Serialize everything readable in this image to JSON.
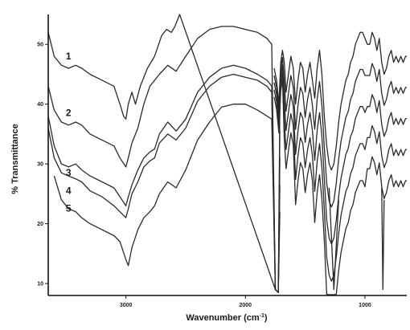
{
  "chart_data": {
    "type": "line",
    "xlabel_prefix": "Wavenumber (cm",
    "xlabel_sup": "-1",
    "xlabel_suffix": ")",
    "ylabel": "% Transmittance",
    "xlim": [
      3650,
      650
    ],
    "ylim": [
      8,
      55
    ],
    "x_reversed": true,
    "grid": false,
    "legend": "none (curves labeled inline 1-5)",
    "x_ticks": [
      {
        "value": 3000,
        "label": "3000"
      },
      {
        "value": 2000,
        "label": "2000"
      },
      {
        "value": 1000,
        "label": "1000"
      }
    ],
    "y_ticks": [
      {
        "value": 10,
        "label": "10"
      },
      {
        "value": 20,
        "label": "20"
      },
      {
        "value": 30,
        "label": "30"
      },
      {
        "value": 40,
        "label": "40"
      },
      {
        "value": 50,
        "label": "50"
      }
    ],
    "series": [
      {
        "name": "1",
        "label_at": [
          3480,
          47.5
        ],
        "color": "#2a2a2a",
        "points": [
          [
            3650,
            52
          ],
          [
            3600,
            48
          ],
          [
            3540,
            46.5
          ],
          [
            3480,
            46
          ],
          [
            3420,
            46.5
          ],
          [
            3370,
            46
          ],
          [
            3300,
            45
          ],
          [
            3200,
            44
          ],
          [
            3100,
            43
          ],
          [
            3050,
            40
          ],
          [
            3020,
            38
          ],
          [
            3000,
            37.5
          ],
          [
            2980,
            40
          ],
          [
            2950,
            42
          ],
          [
            2920,
            40
          ],
          [
            2880,
            43
          ],
          [
            2820,
            46
          ],
          [
            2760,
            48
          ],
          [
            2700,
            51.5
          ],
          [
            2660,
            52.5
          ],
          [
            2620,
            52
          ],
          [
            2590,
            53
          ],
          [
            2550,
            55
          ]
        ]
      },
      {
        "name": "2",
        "label_at": [
          3480,
          38
        ],
        "color": "#2a2a2a",
        "points": [
          [
            3650,
            43
          ],
          [
            3600,
            39
          ],
          [
            3540,
            37
          ],
          [
            3480,
            36.5
          ],
          [
            3420,
            37
          ],
          [
            3370,
            36.5
          ],
          [
            3300,
            35
          ],
          [
            3200,
            34
          ],
          [
            3100,
            33
          ],
          [
            3050,
            31
          ],
          [
            3000,
            29.5
          ],
          [
            2980,
            31
          ],
          [
            2950,
            33.5
          ],
          [
            2900,
            36
          ],
          [
            2850,
            40
          ],
          [
            2800,
            43
          ],
          [
            2720,
            45
          ],
          [
            2650,
            46.5
          ],
          [
            2580,
            45.5
          ],
          [
            2500,
            48
          ],
          [
            2400,
            51
          ],
          [
            2300,
            52.5
          ],
          [
            2200,
            53
          ],
          [
            2100,
            53
          ],
          [
            2000,
            52.5
          ],
          [
            1900,
            52
          ],
          [
            1820,
            51
          ],
          [
            1780,
            50
          ]
        ]
      },
      {
        "name": "3",
        "label_at": [
          3480,
          28
        ],
        "color": "#2a2a2a",
        "points": [
          [
            3650,
            38
          ],
          [
            3600,
            33
          ],
          [
            3540,
            30
          ],
          [
            3480,
            29.5
          ],
          [
            3420,
            30
          ],
          [
            3370,
            29
          ],
          [
            3300,
            28
          ],
          [
            3200,
            27
          ],
          [
            3100,
            26
          ],
          [
            3050,
            24.5
          ],
          [
            3000,
            23
          ],
          [
            2980,
            24.5
          ],
          [
            2950,
            26.5
          ],
          [
            2900,
            29
          ],
          [
            2850,
            31
          ],
          [
            2800,
            32
          ],
          [
            2760,
            32.5
          ],
          [
            2720,
            35
          ],
          [
            2650,
            37
          ],
          [
            2580,
            35.5
          ],
          [
            2500,
            37.5
          ],
          [
            2400,
            42
          ],
          [
            2300,
            44.5
          ],
          [
            2200,
            46
          ],
          [
            2100,
            46.5
          ],
          [
            2000,
            46
          ],
          [
            1900,
            45
          ],
          [
            1820,
            44
          ],
          [
            1780,
            43
          ]
        ]
      },
      {
        "name": "4",
        "label_at": [
          3480,
          25
        ],
        "color": "#2a2a2a",
        "points": [
          [
            3650,
            36
          ],
          [
            3600,
            31
          ],
          [
            3540,
            28.5
          ],
          [
            3480,
            28
          ],
          [
            3420,
            27.5
          ],
          [
            3370,
            27
          ],
          [
            3300,
            25.5
          ],
          [
            3200,
            24.5
          ],
          [
            3100,
            23
          ],
          [
            3050,
            22
          ],
          [
            3000,
            21
          ],
          [
            2980,
            22.5
          ],
          [
            2950,
            25
          ],
          [
            2900,
            27
          ],
          [
            2850,
            29.5
          ],
          [
            2800,
            30.5
          ],
          [
            2760,
            31
          ],
          [
            2720,
            33.5
          ],
          [
            2650,
            35
          ],
          [
            2580,
            34
          ],
          [
            2500,
            36
          ],
          [
            2400,
            40.5
          ],
          [
            2300,
            43
          ],
          [
            2200,
            44.5
          ],
          [
            2100,
            45
          ],
          [
            2000,
            44.5
          ],
          [
            1900,
            44
          ],
          [
            1820,
            43
          ],
          [
            1780,
            42
          ]
        ]
      },
      {
        "name": "5",
        "label_at": [
          3480,
          22
        ],
        "color": "#2a2a2a",
        "points": [
          [
            3600,
            28
          ],
          [
            3540,
            24
          ],
          [
            3480,
            22.5
          ],
          [
            3420,
            22
          ],
          [
            3370,
            21
          ],
          [
            3300,
            20
          ],
          [
            3200,
            19
          ],
          [
            3100,
            18
          ],
          [
            3050,
            17
          ],
          [
            3000,
            14
          ],
          [
            2980,
            13
          ],
          [
            2950,
            16
          ],
          [
            2900,
            19
          ],
          [
            2850,
            21
          ],
          [
            2800,
            22
          ],
          [
            2760,
            23
          ],
          [
            2720,
            25
          ],
          [
            2650,
            27
          ],
          [
            2580,
            26
          ],
          [
            2500,
            29
          ],
          [
            2400,
            34
          ],
          [
            2300,
            37
          ],
          [
            2200,
            39.5
          ],
          [
            2100,
            40
          ],
          [
            2000,
            40
          ],
          [
            1900,
            39
          ],
          [
            1820,
            38
          ],
          [
            1780,
            37.5
          ]
        ]
      }
    ],
    "fingerprint_region": {
      "x": [
        1760,
        1740,
        1720,
        1705,
        1690,
        1675,
        1660,
        1640,
        1620,
        1600,
        1580,
        1560,
        1540,
        1520,
        1500,
        1480,
        1460,
        1440,
        1420,
        1400,
        1380,
        1360,
        1340,
        1320,
        1300,
        1280,
        1260,
        1240,
        1220,
        1200,
        1180,
        1160,
        1140,
        1120,
        1100,
        1080,
        1060,
        1040,
        1020,
        1000,
        980,
        960,
        940,
        920,
        900,
        880,
        860,
        840,
        820,
        800,
        780,
        760,
        740,
        720,
        700,
        680,
        660,
        650
      ],
      "y1": [
        46,
        44,
        40,
        47,
        49,
        47,
        42,
        45,
        48,
        46,
        40,
        44,
        47,
        46,
        42,
        45,
        47,
        44,
        41,
        46,
        49,
        45,
        38,
        33,
        30,
        29,
        30,
        33,
        37,
        40,
        42,
        44,
        45,
        47,
        48,
        50,
        51,
        52,
        52,
        51,
        50,
        50,
        52,
        51,
        49,
        51,
        47,
        45,
        46,
        48,
        49,
        47,
        48,
        47,
        48,
        47,
        48,
        48
      ],
      "spread": [
        0,
        0,
        0,
        0,
        0,
        2,
        2,
        2,
        2,
        2,
        3,
        3,
        3,
        3,
        3,
        3,
        3,
        3,
        4,
        4,
        4,
        4,
        4,
        5,
        5,
        5,
        5,
        5,
        5,
        5,
        5,
        5,
        5,
        5,
        5,
        5,
        5,
        5,
        5,
        5,
        4,
        4,
        4,
        4,
        4,
        4,
        4,
        4,
        4,
        4,
        4,
        4,
        4,
        4,
        4,
        4,
        4,
        4
      ]
    }
  }
}
